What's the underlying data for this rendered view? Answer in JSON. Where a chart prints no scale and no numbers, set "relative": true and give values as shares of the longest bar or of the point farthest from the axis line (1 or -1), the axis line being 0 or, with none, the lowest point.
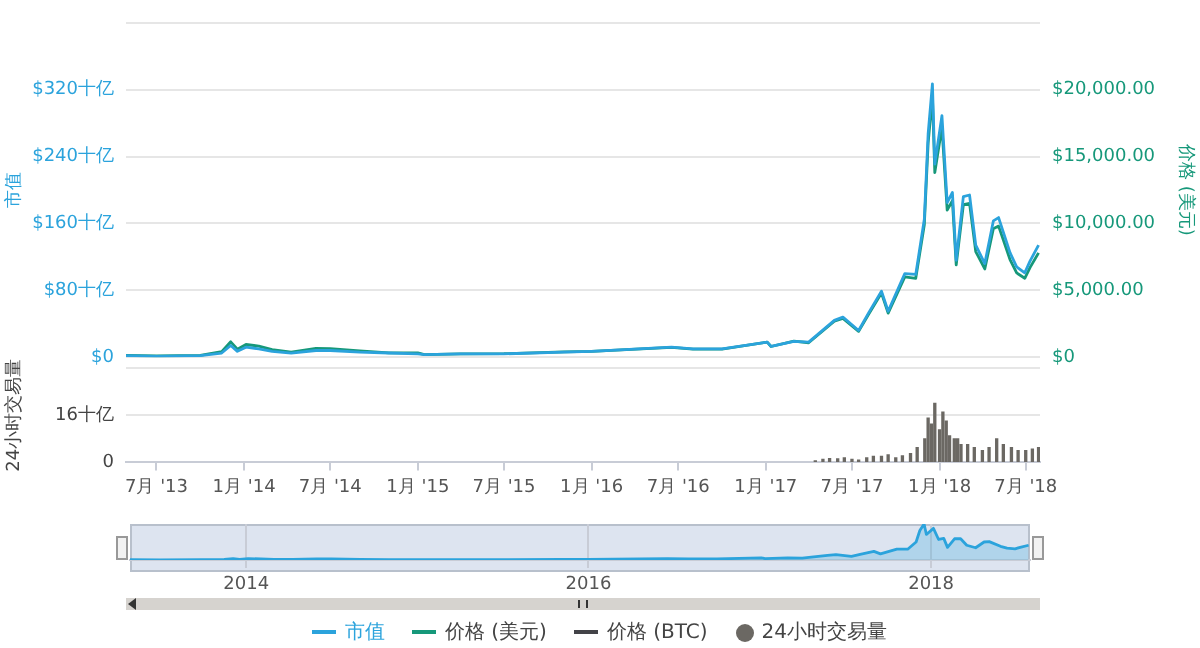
{
  "chart_data": [
    {
      "type": "line",
      "ylabel": "市值",
      "y2label": "价格 (美元)",
      "grid": "y",
      "legend": "bottom",
      "marker": "none",
      "tick_labels": "y",
      "xlim": [
        "2013-04-28",
        "2018-07-31"
      ],
      "ylim": [
        0,
        400
      ],
      "yticks": [
        {
          "value": 0,
          "label": "$0"
        },
        {
          "value": 80,
          "label": "$80十亿"
        },
        {
          "value": 160,
          "label": "$160十亿"
        },
        {
          "value": 240,
          "label": "$240十亿"
        },
        {
          "value": 320,
          "label": "$320十亿"
        },
        {
          "value": 400,
          "label": null
        }
      ],
      "y2lim": [
        0,
        25000
      ],
      "y2ticks": [
        {
          "value": 0,
          "label": "$0"
        },
        {
          "value": 5000,
          "label": "$5,000.00"
        },
        {
          "value": 10000,
          "label": "$10,000.00"
        },
        {
          "value": 15000,
          "label": "$15,000.00"
        },
        {
          "value": 20000,
          "label": "$20,000.00"
        },
        {
          "value": 25000,
          "label": null
        }
      ],
      "x": [
        "2013-04-28",
        "2013-07-01",
        "2013-10-01",
        "2013-11-15",
        "2013-12-04",
        "2013-12-18",
        "2014-01-05",
        "2014-02-01",
        "2014-03-01",
        "2014-04-10",
        "2014-06-01",
        "2014-07-01",
        "2014-09-01",
        "2014-11-01",
        "2015-01-01",
        "2015-01-15",
        "2015-04-01",
        "2015-07-01",
        "2015-11-04",
        "2016-01-01",
        "2016-06-17",
        "2016-08-01",
        "2016-10-01",
        "2017-01-04",
        "2017-01-12",
        "2017-03-01",
        "2017-04-01",
        "2017-05-25",
        "2017-06-12",
        "2017-07-15",
        "2017-08-05",
        "2017-09-01",
        "2017-09-15",
        "2017-10-20",
        "2017-11-12",
        "2017-11-30",
        "2017-12-08",
        "2017-12-17",
        "2017-12-22",
        "2018-01-06",
        "2018-01-17",
        "2018-01-28",
        "2018-02-05",
        "2018-02-20",
        "2018-03-05",
        "2018-03-18",
        "2018-04-06",
        "2018-04-24",
        "2018-05-05",
        "2018-05-29",
        "2018-06-12",
        "2018-06-29",
        "2018-07-10",
        "2018-07-28"
      ],
      "series": [
        {
          "name": "市值",
          "color": "#2ba3dc",
          "values": [
            2,
            1,
            2,
            5,
            14,
            7,
            12,
            10,
            7,
            5,
            8,
            8,
            6,
            5,
            4,
            3,
            4,
            4,
            6,
            7,
            12,
            10,
            10,
            18,
            13,
            19,
            18,
            44,
            48,
            32,
            53,
            79,
            55,
            100,
            99,
            165,
            267,
            327,
            231,
            289,
            185,
            197,
            116,
            192,
            194,
            134,
            112,
            163,
            167,
            125,
            108,
            101,
            115,
            134
          ]
        },
        {
          "name": "价格 (美元)",
          "color": "#16987a",
          "axis": "y2",
          "values": [
            140,
            90,
            130,
            420,
            1150,
            600,
            950,
            830,
            560,
            380,
            650,
            640,
            480,
            330,
            320,
            190,
            250,
            260,
            400,
            430,
            740,
            600,
            610,
            1130,
            800,
            1200,
            1080,
            2700,
            2900,
            1930,
            3200,
            4800,
            3300,
            6000,
            5900,
            9900,
            16000,
            19500,
            13800,
            17200,
            11000,
            11700,
            6900,
            11400,
            11500,
            7900,
            6600,
            9600,
            9800,
            7300,
            6300,
            5900,
            6700,
            7800
          ]
        },
        {
          "name": "价格 (BTC)",
          "color": "#434348",
          "values": [
            null,
            null,
            null,
            null,
            null,
            null,
            null,
            null,
            null,
            null,
            null,
            null,
            null,
            null,
            null,
            null,
            null,
            null,
            null,
            null,
            null,
            null,
            null,
            null,
            null,
            null,
            null,
            null,
            null,
            null,
            null,
            null,
            null,
            null,
            null,
            null,
            null,
            null,
            null,
            null,
            null,
            null,
            null,
            null,
            null,
            null,
            null,
            null,
            null,
            null,
            null,
            null,
            null,
            null
          ]
        }
      ]
    },
    {
      "type": "bar",
      "ylabel": "24小时交易量",
      "grid": "y",
      "legend": "bottom",
      "xlim": [
        "2013-04-28",
        "2018-07-31"
      ],
      "xticks": [
        {
          "value": "2013-07-01",
          "label": "7月 '13"
        },
        {
          "value": "2014-01-01",
          "label": "1月 '14"
        },
        {
          "value": "2014-07-01",
          "label": "7月 '14"
        },
        {
          "value": "2015-01-01",
          "label": "1月 '15"
        },
        {
          "value": "2015-07-01",
          "label": "7月 '15"
        },
        {
          "value": "2016-01-01",
          "label": "1月 '16"
        },
        {
          "value": "2016-07-01",
          "label": "7月 '16"
        },
        {
          "value": "2017-01-01",
          "label": "1月 '17"
        },
        {
          "value": "2017-07-01",
          "label": "7月 '17"
        },
        {
          "value": "2018-01-01",
          "label": "1月 '18"
        },
        {
          "value": "2018-07-01",
          "label": "7月 '18"
        }
      ],
      "ylim": [
        0,
        32
      ],
      "yticks": [
        0,
        {
          "value": 16,
          "label": "16十亿"
        },
        {
          "value": 32,
          "label": null
        }
      ],
      "x": [
        "2017-04-15",
        "2017-05-01",
        "2017-05-15",
        "2017-06-01",
        "2017-06-15",
        "2017-07-01",
        "2017-07-15",
        "2017-08-01",
        "2017-08-15",
        "2017-09-01",
        "2017-09-15",
        "2017-10-01",
        "2017-10-15",
        "2017-11-01",
        "2017-11-15",
        "2017-12-01",
        "2017-12-08",
        "2017-12-15",
        "2017-12-22",
        "2018-01-01",
        "2018-01-08",
        "2018-01-15",
        "2018-01-22",
        "2018-02-01",
        "2018-02-08",
        "2018-02-15",
        "2018-03-01",
        "2018-03-15",
        "2018-04-01",
        "2018-04-15",
        "2018-05-01",
        "2018-05-15",
        "2018-06-01",
        "2018-06-15",
        "2018-07-01",
        "2018-07-15",
        "2018-07-28"
      ],
      "series": [
        {
          "name": "24小时交易量",
          "color": "#6b6863",
          "values": [
            0.5,
            1,
            1.3,
            1.2,
            1.5,
            1,
            0.8,
            1.5,
            2,
            2,
            2.5,
            1.5,
            2.2,
            3,
            5,
            8,
            15,
            13,
            20,
            11,
            17,
            14,
            9,
            8,
            8,
            6,
            6,
            5,
            4,
            5,
            8,
            6,
            5,
            4,
            4,
            4.5,
            5
          ]
        }
      ]
    },
    {
      "type": "area",
      "relative": true,
      "grid": "x",
      "marker": "none",
      "xlim": [
        "2013-04-28",
        "2018-07-31"
      ],
      "xticks": [
        {
          "value": "2014-01-01",
          "label": "2014"
        },
        {
          "value": "2016-01-01",
          "label": "2016"
        },
        {
          "value": "2018-01-01",
          "label": "2018"
        }
      ],
      "x": [
        "2013-04-28",
        "2013-07-01",
        "2013-10-01",
        "2013-11-15",
        "2013-12-04",
        "2013-12-18",
        "2014-01-05",
        "2014-02-01",
        "2014-03-01",
        "2014-04-10",
        "2014-06-01",
        "2014-07-01",
        "2014-09-01",
        "2014-11-01",
        "2015-01-01",
        "2015-01-15",
        "2015-04-01",
        "2015-07-01",
        "2015-11-04",
        "2016-01-01",
        "2016-06-17",
        "2016-08-01",
        "2016-10-01",
        "2017-01-04",
        "2017-01-12",
        "2017-03-01",
        "2017-04-01",
        "2017-05-25",
        "2017-06-12",
        "2017-07-15",
        "2017-08-05",
        "2017-09-01",
        "2017-09-15",
        "2017-10-20",
        "2017-11-12",
        "2017-11-30",
        "2017-12-08",
        "2017-12-17",
        "2017-12-22",
        "2018-01-06",
        "2018-01-17",
        "2018-01-28",
        "2018-02-05",
        "2018-02-20",
        "2018-03-05",
        "2018-03-18",
        "2018-04-06",
        "2018-04-24",
        "2018-05-05",
        "2018-05-29",
        "2018-06-12",
        "2018-06-29",
        "2018-07-10",
        "2018-07-28"
      ],
      "series": [
        {
          "color": "#2ba3dc",
          "values": [
            0.01,
            0,
            0.01,
            0.02,
            0.04,
            0.02,
            0.04,
            0.03,
            0.02,
            0.02,
            0.03,
            0.03,
            0.02,
            0.01,
            0.01,
            0.01,
            0.01,
            0.01,
            0.02,
            0.02,
            0.04,
            0.03,
            0.03,
            0.06,
            0.04,
            0.06,
            0.05,
            0.13,
            0.15,
            0.1,
            0.16,
            0.24,
            0.17,
            0.3,
            0.3,
            0.5,
            0.82,
            1,
            0.71,
            0.88,
            0.57,
            0.6,
            0.35,
            0.59,
            0.59,
            0.41,
            0.34,
            0.5,
            0.51,
            0.38,
            0.33,
            0.31,
            0.35,
            0.41
          ]
        }
      ]
    }
  ]
}
